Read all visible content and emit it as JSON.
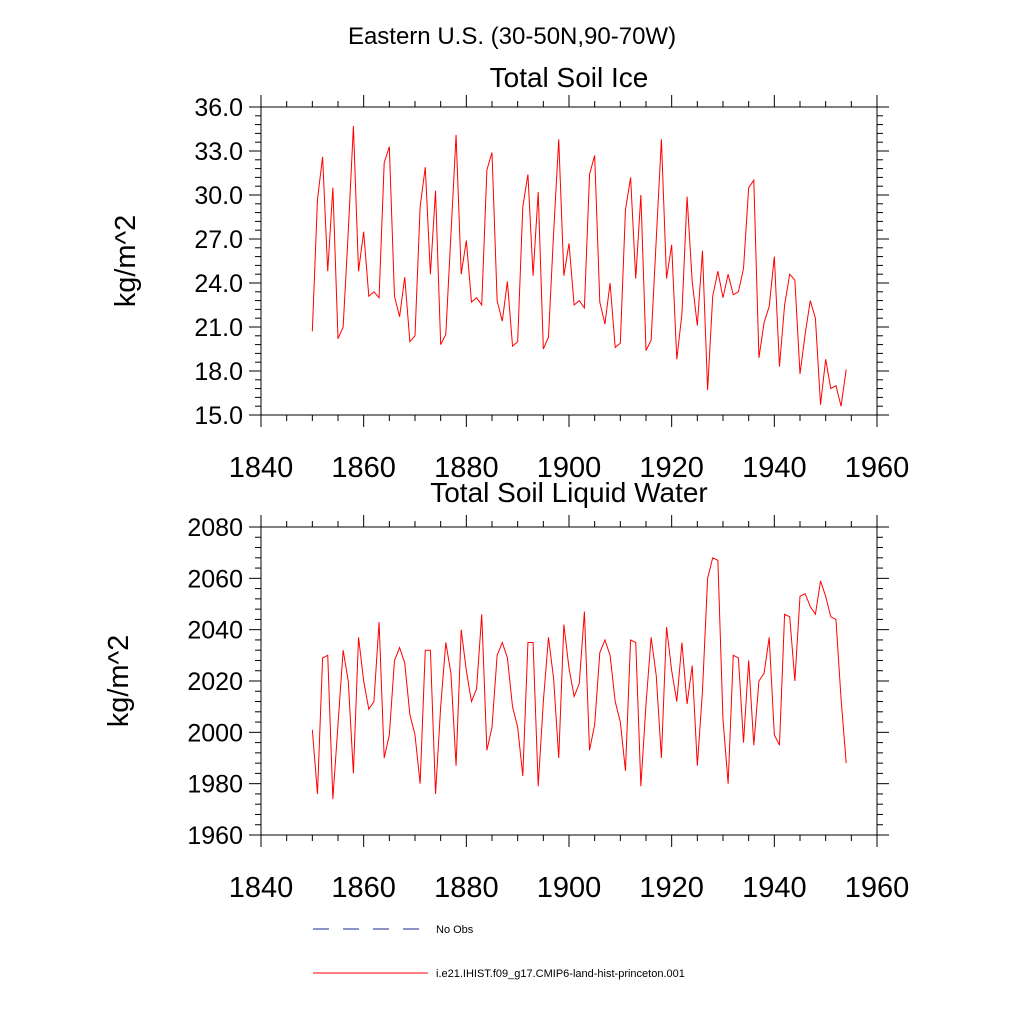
{
  "page_title": "Eastern U.S. (30-50N,90-70W)",
  "legend": {
    "entries": [
      {
        "label": "No Obs",
        "color": "#1a2a8c",
        "dash": true
      },
      {
        "label": "i.e21.IHIST.f09_g17.CMIP6-land-hist-princeton.001",
        "color": "#ff0000",
        "dash": false
      }
    ]
  },
  "chart_data": [
    {
      "type": "line",
      "title": "Total Soil Ice",
      "xlabel": "",
      "ylabel": "kg/m^2",
      "xlim": [
        1840,
        1960
      ],
      "ylim": [
        15.0,
        36.0
      ],
      "xticks": [
        "1840",
        "1860",
        "1880",
        "1900",
        "1920",
        "1940",
        "1960"
      ],
      "yticks": [
        "15.0",
        "18.0",
        "21.0",
        "24.0",
        "27.0",
        "30.0",
        "33.0",
        "36.0"
      ],
      "series": [
        {
          "color": "#ff0000",
          "x": [
            1850,
            1851,
            1852,
            1853,
            1854,
            1855,
            1856,
            1857,
            1858,
            1859,
            1860,
            1861,
            1862,
            1863,
            1864,
            1865,
            1866,
            1867,
            1868,
            1869,
            1870,
            1871,
            1872,
            1873,
            1874,
            1875,
            1876,
            1877,
            1878,
            1879,
            1880,
            1881,
            1882,
            1883,
            1884,
            1885,
            1886,
            1887,
            1888,
            1889,
            1890,
            1891,
            1892,
            1893,
            1894,
            1895,
            1896,
            1897,
            1898,
            1899,
            1900,
            1901,
            1902,
            1903,
            1904,
            1905,
            1906,
            1907,
            1908,
            1909,
            1910,
            1911,
            1912,
            1913,
            1914,
            1915,
            1916,
            1917,
            1918,
            1919,
            1920,
            1921,
            1922,
            1923,
            1924,
            1925,
            1926,
            1927,
            1928,
            1929,
            1930,
            1931,
            1932,
            1933,
            1934,
            1935,
            1936,
            1937,
            1938,
            1939,
            1940,
            1941,
            1942,
            1943,
            1944,
            1945,
            1946,
            1947,
            1948,
            1949,
            1950,
            1951,
            1952,
            1953,
            1954
          ],
          "values": [
            20.7,
            29.7,
            32.6,
            24.8,
            30.5,
            20.2,
            21.0,
            27.5,
            34.7,
            24.8,
            27.5,
            23.1,
            23.4,
            23.0,
            32.2,
            33.3,
            23.1,
            21.7,
            24.4,
            20.0,
            20.4,
            29.2,
            31.9,
            24.6,
            30.3,
            19.8,
            20.5,
            27.3,
            34.1,
            24.6,
            26.9,
            22.7,
            23.0,
            22.5,
            31.7,
            32.9,
            22.8,
            21.4,
            24.1,
            19.7,
            20.0,
            29.2,
            31.4,
            24.5,
            30.2,
            19.5,
            20.3,
            27.4,
            33.8,
            24.5,
            26.7,
            22.5,
            22.8,
            22.3,
            31.4,
            32.7,
            22.7,
            21.2,
            24.0,
            19.6,
            19.9,
            29.0,
            31.2,
            24.3,
            30.0,
            19.4,
            20.1,
            27.0,
            33.8,
            24.3,
            26.6,
            18.8,
            21.9,
            29.9,
            24.1,
            21.1,
            26.2,
            16.7,
            23.1,
            24.8,
            23.0,
            24.6,
            23.2,
            23.4,
            25.0,
            30.5,
            31.0,
            18.9,
            21.3,
            22.4,
            25.8,
            18.3,
            22.5,
            24.6,
            24.2,
            17.8,
            20.5,
            22.8,
            21.6,
            15.7,
            18.8,
            16.8,
            17.0,
            15.6,
            18.1
          ]
        }
      ]
    },
    {
      "type": "line",
      "title": "Total Soil Liquid Water",
      "xlabel": "",
      "ylabel": "kg/m^2",
      "xlim": [
        1840,
        1960
      ],
      "ylim": [
        1960,
        2080
      ],
      "xticks": [
        "1840",
        "1860",
        "1880",
        "1900",
        "1920",
        "1940",
        "1960"
      ],
      "yticks": [
        "1960",
        "1980",
        "2000",
        "2020",
        "2040",
        "2060",
        "2080"
      ],
      "series": [
        {
          "color": "#ff0000",
          "x": [
            1850,
            1851,
            1852,
            1853,
            1854,
            1855,
            1856,
            1857,
            1858,
            1859,
            1860,
            1861,
            1862,
            1863,
            1864,
            1865,
            1866,
            1867,
            1868,
            1869,
            1870,
            1871,
            1872,
            1873,
            1874,
            1875,
            1876,
            1877,
            1878,
            1879,
            1880,
            1881,
            1882,
            1883,
            1884,
            1885,
            1886,
            1887,
            1888,
            1889,
            1890,
            1891,
            1892,
            1893,
            1894,
            1895,
            1896,
            1897,
            1898,
            1899,
            1900,
            1901,
            1902,
            1903,
            1904,
            1905,
            1906,
            1907,
            1908,
            1909,
            1910,
            1911,
            1912,
            1913,
            1914,
            1915,
            1916,
            1917,
            1918,
            1919,
            1920,
            1921,
            1922,
            1923,
            1924,
            1925,
            1926,
            1927,
            1928,
            1929,
            1930,
            1931,
            1932,
            1933,
            1934,
            1935,
            1936,
            1937,
            1938,
            1939,
            1940,
            1941,
            1942,
            1943,
            1944,
            1945,
            1946,
            1947,
            1948,
            1949,
            1950,
            1951,
            1952,
            1953,
            1954
          ],
          "values": [
            2001,
            1976,
            2029,
            2030,
            1974,
            2003,
            2032,
            2020,
            1984,
            2037,
            2020,
            2009,
            2012,
            2043,
            1990,
            1999,
            2028,
            2033,
            2027,
            2007,
            1999,
            1980,
            2032,
            2032,
            1976,
            2010,
            2035,
            2023,
            1987,
            2040,
            2024,
            2012,
            2017,
            2046,
            1993,
            2002,
            2030,
            2035,
            2029,
            2010,
            2002,
            1983,
            2035,
            2035,
            1979,
            2012,
            2037,
            2021,
            1990,
            2042,
            2025,
            2014,
            2019,
            2047,
            1993,
            2003,
            2031,
            2036,
            2030,
            2012,
            2004,
            1985,
            2036,
            2035,
            1979,
            2011,
            2037,
            2022,
            1990,
            2041,
            2024,
            2012,
            2035,
            2011,
            2026,
            1987,
            2016,
            2060,
            2068,
            2067,
            2005,
            1980,
            2030,
            2029,
            1996,
            2028,
            1995,
            2020,
            2023,
            2037,
            1999,
            1995,
            2046,
            2045,
            2020,
            2053,
            2054,
            2049,
            2046,
            2059,
            2053,
            2045,
            2044,
            2013,
            1988
          ]
        }
      ]
    }
  ]
}
